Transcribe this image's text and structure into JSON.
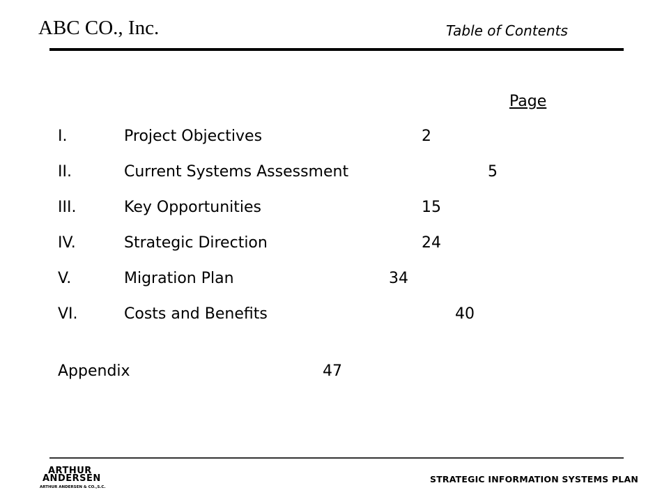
{
  "header": {
    "company": "ABC CO., Inc.",
    "title": "Table of Contents"
  },
  "toc": {
    "page_label": "Page",
    "entries": [
      {
        "num": "I.",
        "title": "Project Objectives",
        "page": "2"
      },
      {
        "num": "II.",
        "title": "Current Systems Assessment",
        "page": "5"
      },
      {
        "num": "III.",
        "title": "Key Opportunities",
        "page": "15"
      },
      {
        "num": "IV.",
        "title": "Strategic Direction",
        "page": "24"
      },
      {
        "num": "V.",
        "title": "Migration Plan",
        "page": "34"
      },
      {
        "num": "VI.",
        "title": "Costs and Benefits",
        "page": "40"
      }
    ],
    "appendix": {
      "title": "Appendix",
      "page": "47"
    }
  },
  "footer": {
    "logo_line1": "ARTHUR",
    "logo_line2": "ANDERSEN",
    "logo_line3": "ARTHUR ANDERSEN & CO.,S.C.",
    "plan_title": "STRATEGIC INFORMATION SYSTEMS PLAN"
  }
}
